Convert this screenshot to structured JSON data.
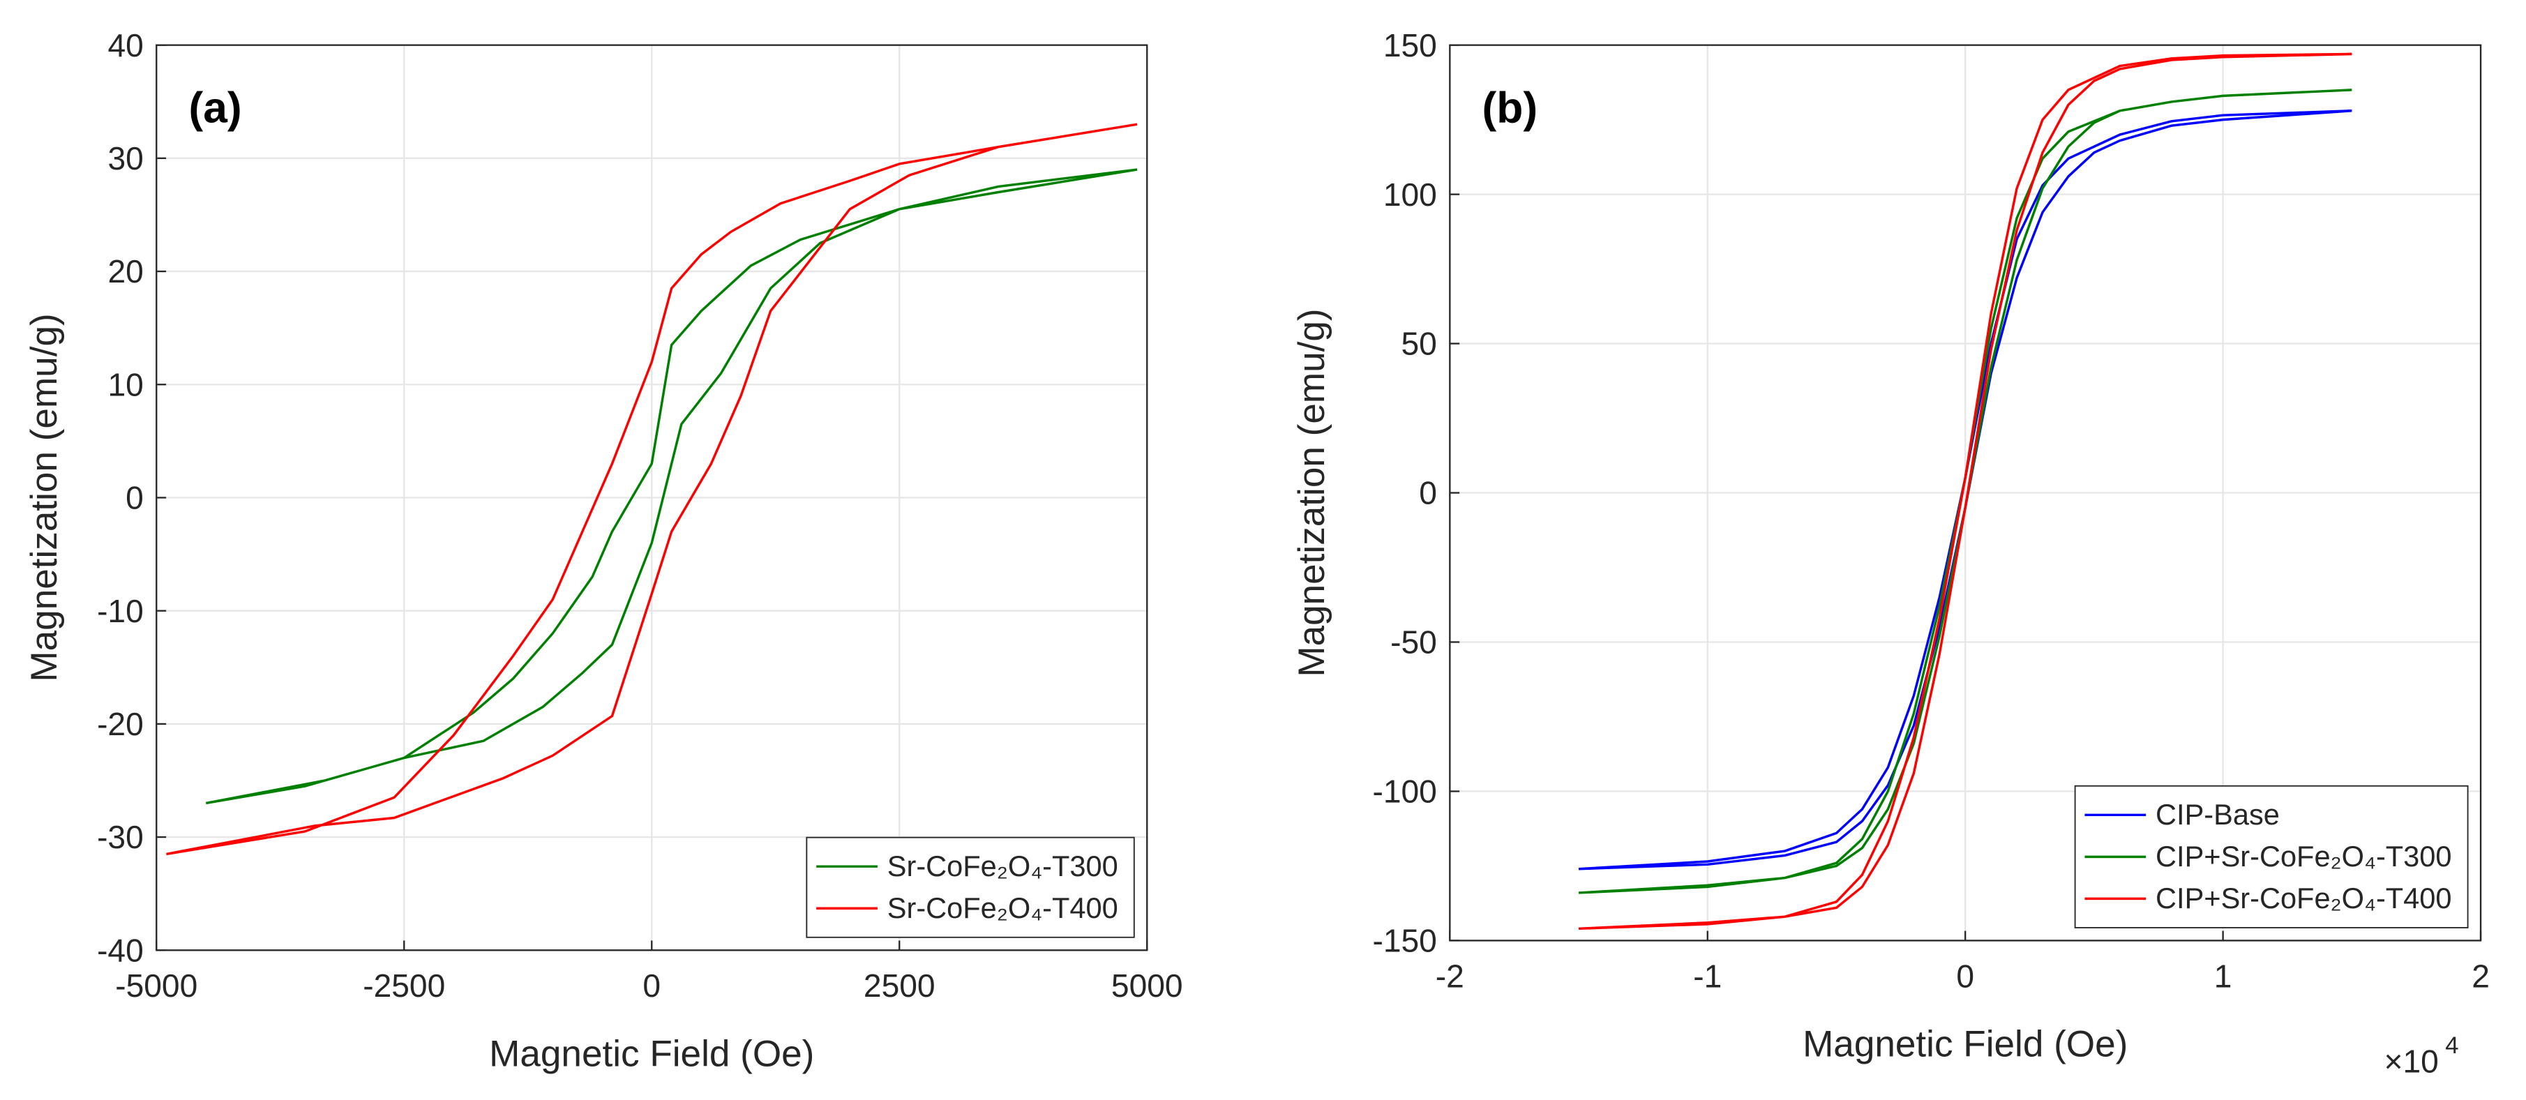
{
  "chart_data": [
    {
      "type": "line",
      "title": "(a)",
      "xlabel": "Magnetic Field (Oe)",
      "ylabel": "Magnetization (emu/g)",
      "xlim": [
        -5000,
        5000
      ],
      "xticks": [
        -5000,
        -2500,
        0,
        2500,
        5000
      ],
      "ylim": [
        -40,
        40
      ],
      "yticks": [
        -40,
        -30,
        -20,
        -10,
        0,
        10,
        20,
        30,
        40
      ],
      "grid": true,
      "legend": "lower right",
      "series": [
        {
          "name": "Sr-CoFe₂O₄-T300",
          "color": "#008000",
          "x": [
            4900,
            3500,
            2500,
            1500,
            1000,
            500,
            200,
            0,
            -400,
            -600,
            -1000,
            -1400,
            -1800,
            -2500,
            -3500,
            -4500,
            -3300,
            -2500,
            -1700,
            -1100,
            -700,
            -400,
            0,
            300,
            700,
            1200,
            1700,
            2500,
            3500,
            4900
          ],
          "values": [
            29,
            27.5,
            25.5,
            22.8,
            20.5,
            16.5,
            13.5,
            3,
            -3,
            -7,
            -12,
            -16,
            -19,
            -23,
            -25.5,
            -27,
            -25,
            -23,
            -21.5,
            -18.5,
            -15.5,
            -13,
            -4,
            6.5,
            11,
            18.5,
            22.5,
            25.5,
            27,
            29
          ]
        },
        {
          "name": "Sr-CoFe₂O₄-T400",
          "color": "#ff0000",
          "x": [
            4900,
            3500,
            2500,
            2000,
            1300,
            800,
            500,
            200,
            0,
            -400,
            -700,
            -1000,
            -1400,
            -2000,
            -2600,
            -3500,
            -4900,
            -3400,
            -2600,
            -1500,
            -1000,
            -400,
            0,
            200,
            600,
            900,
            1200,
            2000,
            2600,
            3500,
            4900
          ],
          "values": [
            33,
            31,
            29.5,
            28,
            26,
            23.5,
            21.5,
            18.5,
            12,
            3,
            -3,
            -9,
            -14,
            -21,
            -26.5,
            -29.5,
            -31.5,
            -29,
            -28.3,
            -24.8,
            -22.8,
            -19.3,
            -8.5,
            -3,
            3,
            9,
            16.5,
            25.5,
            28.5,
            31,
            33
          ]
        }
      ]
    },
    {
      "type": "line",
      "title": "(b)",
      "xlabel": "Magnetic Field (Oe)",
      "ylabel": "Magnetization (emu/g)",
      "x_multiplier": {
        "base": "×10",
        "exponent": "4"
      },
      "xlim": [
        -2,
        2
      ],
      "xticks": [
        -2,
        -1,
        0,
        1,
        2
      ],
      "ylim": [
        -150,
        150
      ],
      "yticks": [
        -150,
        -100,
        -50,
        0,
        50,
        100,
        150
      ],
      "grid": true,
      "legend": "lower right",
      "series": [
        {
          "name": "CIP-Base",
          "color": "#0000ff",
          "x": [
            1.5,
            1.0,
            0.8,
            0.6,
            0.4,
            0.3,
            0.2,
            0.1,
            0,
            -0.1,
            -0.2,
            -0.3,
            -0.4,
            -0.5,
            -0.7,
            -1.0,
            -1.5,
            -1.0,
            -0.7,
            -0.5,
            -0.4,
            -0.3,
            -0.2,
            -0.1,
            0,
            0.1,
            0.2,
            0.3,
            0.4,
            0.5,
            0.6,
            0.8,
            1.0,
            1.5
          ],
          "values": [
            128,
            126.5,
            124.5,
            120,
            112,
            103,
            85,
            50,
            5,
            -35,
            -68,
            -92,
            -106,
            -114,
            -120,
            -123.5,
            -126,
            -124.5,
            -121.5,
            -117,
            -110,
            -98,
            -78,
            -45,
            -5,
            40,
            72,
            94,
            106,
            114,
            118,
            123,
            125,
            128
          ]
        },
        {
          "name": "CIP+Sr-CoFe₂O₄-T300",
          "color": "#008000",
          "x": [
            1.5,
            1.0,
            0.8,
            0.6,
            0.4,
            0.3,
            0.2,
            0.1,
            0,
            -0.1,
            -0.2,
            -0.3,
            -0.4,
            -0.5,
            -0.7,
            -1.0,
            -1.5,
            -1.0,
            -0.7,
            -0.5,
            -0.4,
            -0.3,
            -0.2,
            -0.1,
            0,
            0.1,
            0.2,
            0.3,
            0.4,
            0.5,
            0.6,
            0.8,
            1.0,
            1.5
          ],
          "values": [
            135,
            133,
            131,
            128,
            121,
            112,
            92,
            55,
            5,
            -38,
            -74,
            -100,
            -116,
            -124,
            -129,
            -131.5,
            -134,
            -132,
            -129,
            -125,
            -119,
            -106,
            -84,
            -48,
            -5,
            42,
            78,
            102,
            116,
            124,
            128,
            131,
            133,
            135
          ]
        },
        {
          "name": "CIP+Sr-CoFe₂O₄-T400",
          "color": "#ff0000",
          "x": [
            1.5,
            1.0,
            0.8,
            0.6,
            0.4,
            0.3,
            0.2,
            0.1,
            0,
            -0.1,
            -0.2,
            -0.3,
            -0.4,
            -0.5,
            -0.7,
            -1.0,
            -1.5,
            -1.0,
            -0.7,
            -0.5,
            -0.4,
            -0.3,
            -0.2,
            -0.1,
            0,
            0.1,
            0.2,
            0.3,
            0.4,
            0.5,
            0.6,
            0.8,
            1.0,
            1.5
          ],
          "values": [
            147,
            146.5,
            145.5,
            143,
            135,
            125,
            102,
            60,
            5,
            -42,
            -82,
            -110,
            -128,
            -137,
            -142,
            -144.5,
            -146,
            -144,
            -142,
            -139,
            -132,
            -118,
            -94,
            -54,
            -5,
            48,
            88,
            114,
            130,
            138,
            142,
            145,
            146,
            147
          ]
        }
      ]
    }
  ]
}
